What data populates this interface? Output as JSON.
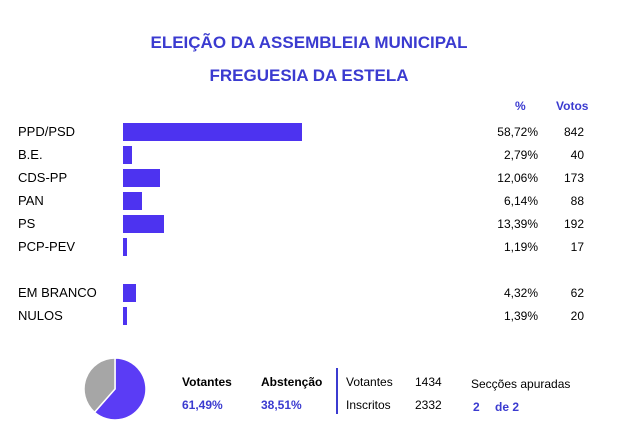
{
  "title": "ELEIÇÃO DA ASSEMBLEIA MUNICIPAL",
  "subtitle": "FREGUESIA DA ESTELA",
  "headers": {
    "pct": "%",
    "votes": "Votos"
  },
  "chart_data": {
    "type": "bar",
    "orientation": "horizontal",
    "title": "ELEIÇÃO DA ASSEMBLEIA MUNICIPAL",
    "subtitle": "FREGUESIA DA ESTELA",
    "rows": [
      {
        "label": "PPD/PSD",
        "value": 58.72,
        "pct_text": "58,72%",
        "votes": "842"
      },
      {
        "label": "B.E.",
        "value": 2.79,
        "pct_text": "2,79%",
        "votes": "40"
      },
      {
        "label": "CDS-PP",
        "value": 12.06,
        "pct_text": "12,06%",
        "votes": "173"
      },
      {
        "label": "PAN",
        "value": 6.14,
        "pct_text": "6,14%",
        "votes": "88"
      },
      {
        "label": "PS",
        "value": 13.39,
        "pct_text": "13,39%",
        "votes": "192"
      },
      {
        "label": "PCP-PEV",
        "value": 1.19,
        "pct_text": "1,19%",
        "votes": "17"
      },
      {
        "label": "EM BRANCO",
        "value": 4.32,
        "pct_text": "4,32%",
        "votes": "62"
      },
      {
        "label": "NULOS",
        "value": 1.39,
        "pct_text": "1,39%",
        "votes": "20"
      }
    ],
    "bar_color": "#4d33f0",
    "pie": {
      "type": "pie",
      "slices": [
        {
          "name": "Votantes",
          "value": 61.49,
          "color": "#5b3cf5"
        },
        {
          "name": "Abstenção",
          "value": 38.51,
          "color": "#a6a6a6"
        }
      ]
    }
  },
  "footer": {
    "votantes_label": "Votantes",
    "votantes_pct": "61,49%",
    "abstencao_label": "Abstenção",
    "abstencao_pct": "38,51%",
    "votantes_count_label": "Votantes",
    "votantes_count": "1434",
    "inscritos_label": "Inscritos",
    "inscritos_count": "2332",
    "seccoes_label": "Secções apuradas",
    "seccoes_done": "2",
    "seccoes_total": "de 2"
  }
}
